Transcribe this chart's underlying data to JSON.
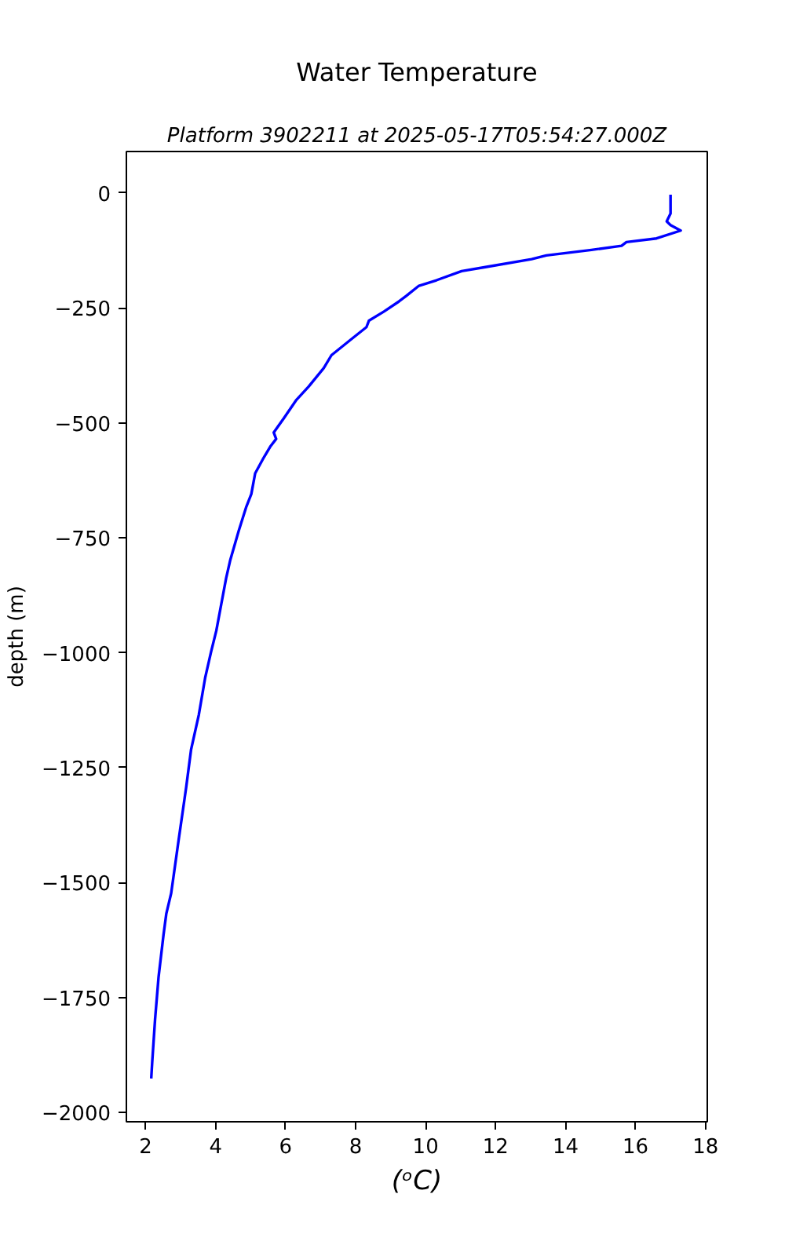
{
  "chart_data": {
    "type": "line",
    "title": "Water Temperature",
    "subtitle": "Platform 3902211 at 2025-05-17T05:54:27.000Z",
    "xlabel": "(ᵒC)",
    "ylabel": "depth (m)",
    "x": [
      17.0,
      17.0,
      16.89,
      17.0,
      17.29,
      16.6,
      15.74,
      15.6,
      14.74,
      13.45,
      13.03,
      11.74,
      11.03,
      10.31,
      9.81,
      9.45,
      9.24,
      8.81,
      8.38,
      8.31,
      7.88,
      7.31,
      7.09,
      6.66,
      6.31,
      5.95,
      5.66,
      5.73,
      5.56,
      5.38,
      5.13,
      5.02,
      4.87,
      4.66,
      4.42,
      4.3,
      4.16,
      4.02,
      3.87,
      3.7,
      3.52,
      3.3,
      3.16,
      2.94,
      2.73,
      2.59,
      2.51,
      2.37,
      2.27,
      2.19,
      2.16
    ],
    "values": [
      -4,
      -45,
      -62,
      -70,
      -82,
      -99,
      -107,
      -115,
      -124,
      -136,
      -144,
      -161,
      -170,
      -190,
      -202,
      -224,
      -236,
      -258,
      -278,
      -292,
      -318,
      -353,
      -381,
      -421,
      -450,
      -490,
      -521,
      -535,
      -552,
      -575,
      -610,
      -655,
      -684,
      -735,
      -798,
      -838,
      -895,
      -952,
      -998,
      -1055,
      -1135,
      -1210,
      -1292,
      -1409,
      -1523,
      -1568,
      -1614,
      -1705,
      -1797,
      -1888,
      -1926
    ],
    "color": "#0000ff",
    "xlim": [
      1.45,
      18.05
    ],
    "ylim": [
      -2020,
      90
    ],
    "xticks": [
      2,
      4,
      6,
      8,
      10,
      12,
      14,
      16,
      18
    ],
    "yticks": [
      0,
      {
        "value": -250,
        "label": "−250"
      },
      {
        "value": -500,
        "label": "−500"
      },
      {
        "value": -750,
        "label": "−750"
      },
      {
        "value": -1000,
        "label": "−1000"
      },
      {
        "value": -1250,
        "label": "−1250"
      },
      {
        "value": -1500,
        "label": "−1500"
      },
      {
        "value": -1750,
        "label": "−1750"
      },
      {
        "value": -2000,
        "label": "−2000"
      }
    ]
  }
}
